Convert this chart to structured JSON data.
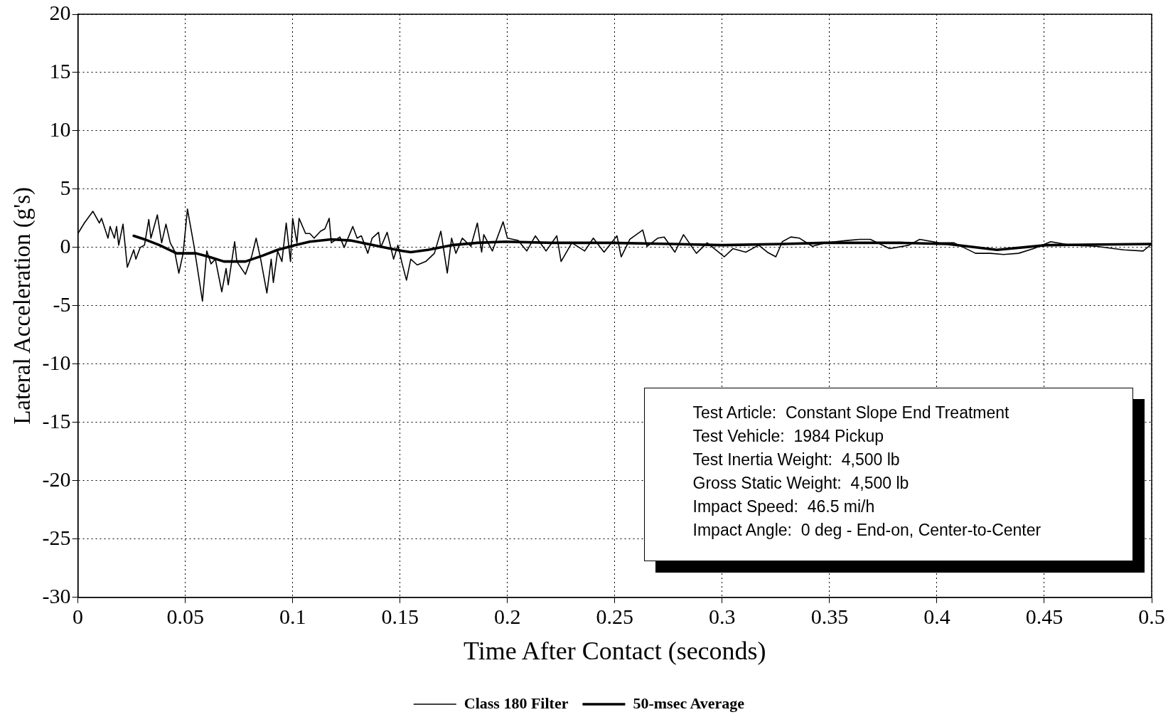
{
  "chart_data": {
    "type": "line",
    "xlabel": "Time After Contact (seconds)",
    "ylabel": "Lateral Acceleration (g's)",
    "xlim": [
      0,
      0.5
    ],
    "xticks": [
      0,
      0.05,
      0.1,
      0.15,
      0.2,
      0.25,
      0.3,
      0.35,
      0.4,
      0.45,
      0.5
    ],
    "ylim": [
      -30,
      20
    ],
    "yticks": [
      -30,
      -25,
      -20,
      -15,
      -10,
      -5,
      0,
      5,
      10,
      15,
      20
    ],
    "grid": true,
    "legend": "bottom",
    "marker": "none",
    "line_style": "solid",
    "annotations": [
      "Test Article:  Constant Slope End Treatment",
      "Test Vehicle:  1984 Pickup",
      "Test Inertia Weight:  4,500 lb",
      "Gross Static Weight:  4,500 lb",
      "Impact Speed:  46.5 mi/h",
      "Impact Angle:  0 deg - End-on, Center-to-Center"
    ],
    "series": [
      {
        "name": "Class 180 Filter",
        "color": "#000000",
        "x": [
          0,
          0.003,
          0.007,
          0.01,
          0.011,
          0.014,
          0.015,
          0.017,
          0.018,
          0.019,
          0.021,
          0.023,
          0.026,
          0.027,
          0.029,
          0.031,
          0.033,
          0.034,
          0.037,
          0.039,
          0.041,
          0.043,
          0.045,
          0.047,
          0.049,
          0.051,
          0.054,
          0.056,
          0.058,
          0.06,
          0.062,
          0.064,
          0.067,
          0.069,
          0.07,
          0.073,
          0.074,
          0.078,
          0.081,
          0.083,
          0.085,
          0.088,
          0.09,
          0.091,
          0.093,
          0.095,
          0.097,
          0.099,
          0.1,
          0.102,
          0.103,
          0.106,
          0.108,
          0.11,
          0.113,
          0.115,
          0.117,
          0.118,
          0.122,
          0.124,
          0.128,
          0.13,
          0.132,
          0.135,
          0.137,
          0.14,
          0.141,
          0.144,
          0.147,
          0.149,
          0.151,
          0.153,
          0.155,
          0.158,
          0.162,
          0.166,
          0.169,
          0.172,
          0.174,
          0.176,
          0.179,
          0.183,
          0.186,
          0.188,
          0.189,
          0.193,
          0.198,
          0.2,
          0.205,
          0.209,
          0.213,
          0.218,
          0.223,
          0.225,
          0.23,
          0.236,
          0.24,
          0.245,
          0.251,
          0.253,
          0.257,
          0.263,
          0.265,
          0.27,
          0.273,
          0.278,
          0.282,
          0.288,
          0.293,
          0.301,
          0.305,
          0.311,
          0.317,
          0.321,
          0.325,
          0.328,
          0.332,
          0.336,
          0.342,
          0.348,
          0.358,
          0.364,
          0.369,
          0.378,
          0.387,
          0.392,
          0.401,
          0.408,
          0.418,
          0.425,
          0.431,
          0.438,
          0.445,
          0.453,
          0.462,
          0.474,
          0.487,
          0.496,
          0.5
        ],
        "values": [
          1.2,
          2.1,
          3.1,
          2.1,
          2.5,
          0.8,
          1.8,
          0.8,
          1.8,
          0.2,
          2.0,
          -1.7,
          -0.2,
          -1.0,
          0,
          0.2,
          2.4,
          0.8,
          2.8,
          0.4,
          2.0,
          0.4,
          -0.3,
          -2.2,
          -0.5,
          3.3,
          0.2,
          -2.2,
          -4.6,
          -0.3,
          -1.4,
          -1.0,
          -3.8,
          -1.8,
          -3.2,
          0.5,
          -1.2,
          -2.3,
          -0.7,
          0.8,
          -0.9,
          -3.9,
          -1.0,
          -3.0,
          -0.3,
          -1.2,
          2.1,
          -1.2,
          2.5,
          0.4,
          2.5,
          1.2,
          1.2,
          0.8,
          1.4,
          1.6,
          2.5,
          0.4,
          0.9,
          0,
          1.8,
          0.8,
          1.0,
          -0.5,
          0.8,
          1.3,
          0,
          1.3,
          -1.0,
          0.2,
          -1.4,
          -2.8,
          -1.0,
          -1.5,
          -1.2,
          -0.5,
          1.4,
          -2.2,
          0.8,
          -0.5,
          0.8,
          0.1,
          2.1,
          -0.4,
          1.1,
          -0.3,
          2.2,
          0.8,
          0.6,
          -0.3,
          1.0,
          -0.3,
          1.0,
          -1.2,
          0.4,
          -0.3,
          0.8,
          -0.4,
          1.0,
          -0.8,
          0.7,
          1.5,
          0.1,
          0.8,
          0.9,
          -0.4,
          1.1,
          -0.5,
          0.4,
          -0.8,
          -0.1,
          -0.4,
          0.2,
          -0.4,
          -0.8,
          0.5,
          0.9,
          0.8,
          0.1,
          0.4,
          0.6,
          0.7,
          0.7,
          -0.1,
          0.2,
          0.7,
          0.4,
          0.4,
          -0.5,
          -0.5,
          -0.6,
          -0.5,
          -0.1,
          0.5,
          0.2,
          0.1,
          -0.2,
          -0.3,
          0.3
        ]
      },
      {
        "name": "50-msec Average",
        "color": "#000000",
        "x": [
          0.026,
          0.031,
          0.038,
          0.046,
          0.055,
          0.061,
          0.068,
          0.078,
          0.086,
          0.093,
          0.101,
          0.108,
          0.118,
          0.127,
          0.135,
          0.143,
          0.151,
          0.155,
          0.163,
          0.174,
          0.186,
          0.199,
          0.22,
          0.248,
          0.277,
          0.3,
          0.328,
          0.348,
          0.383,
          0.405,
          0.428,
          0.451,
          0.5
        ],
        "values": [
          1.0,
          0.7,
          0.2,
          -0.5,
          -0.5,
          -0.8,
          -1.2,
          -1.2,
          -0.7,
          -0.2,
          0.2,
          0.5,
          0.7,
          0.6,
          0.3,
          0,
          -0.3,
          -0.4,
          -0.2,
          0.2,
          0.4,
          0.5,
          0.4,
          0.4,
          0.3,
          0.2,
          0.3,
          0.4,
          0.4,
          0.3,
          -0.2,
          0.2,
          0.3
        ]
      }
    ]
  }
}
